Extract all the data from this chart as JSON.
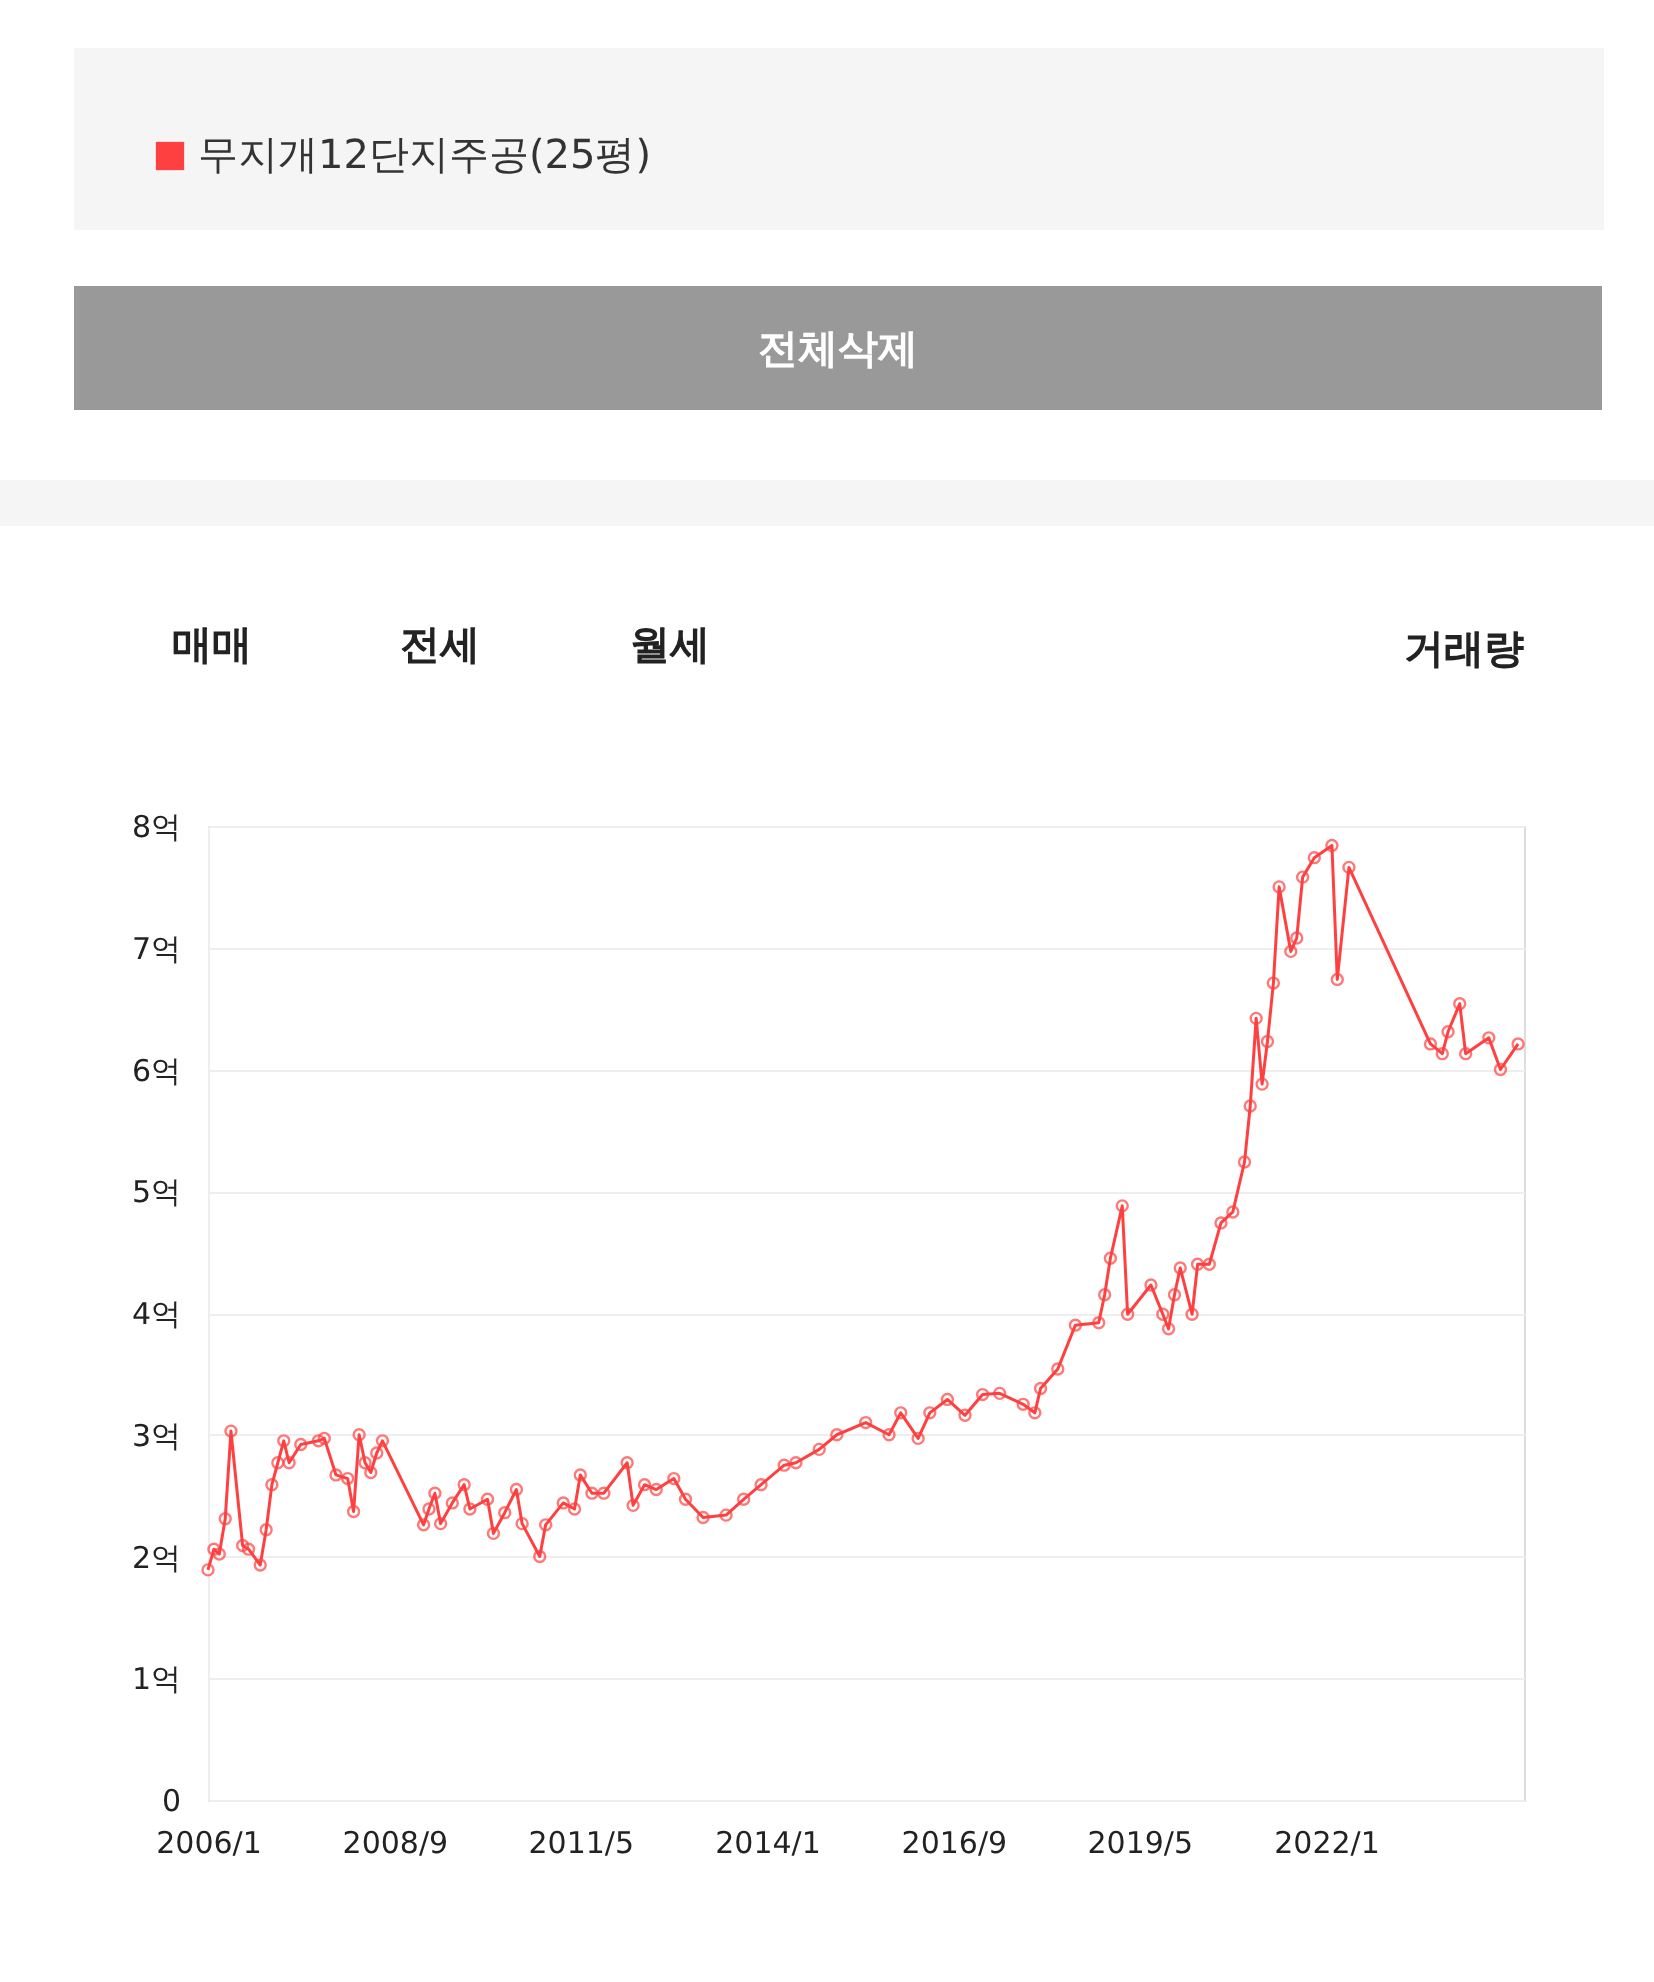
{
  "chart_data": {
    "type": "line",
    "marker": "circle",
    "line_style": "solid",
    "grid": "y",
    "legend": "top left",
    "annotations": [
      "전체삭제",
      "매매",
      "전세",
      "월세",
      "거래량"
    ],
    "xlim": [
      "2006-01",
      "2024-11"
    ],
    "ylim": [
      0,
      8
    ],
    "xticks": [
      {
        "value": "2006-01",
        "label": "2006/1"
      },
      {
        "value": "2008-09",
        "label": "2008/9"
      },
      {
        "value": "2011-05",
        "label": "2011/5"
      },
      {
        "value": "2014-01",
        "label": "2014/1"
      },
      {
        "value": "2016-09",
        "label": "2016/9"
      },
      {
        "value": "2019-05",
        "label": "2019/5"
      },
      {
        "value": "2022-01",
        "label": "2022/1"
      }
    ],
    "yticks": [
      0,
      {
        "value": 1,
        "label": "1억"
      },
      {
        "value": 2,
        "label": "2억"
      },
      {
        "value": 3,
        "label": "3억"
      },
      {
        "value": 4,
        "label": "4억"
      },
      {
        "value": 5,
        "label": "5억"
      },
      {
        "value": 6,
        "label": "6억"
      },
      {
        "value": 7,
        "label": "7억"
      },
      {
        "value": 8,
        "label": "8억"
      }
    ],
    "x": [
      "2006-01",
      "2006-02",
      "2006-03",
      "2006-04",
      "2006-05",
      "2006-07",
      "2006-08",
      "2006-10",
      "2006-11",
      "2006-12",
      "2007-01",
      "2007-02",
      "2007-03",
      "2007-05",
      "2007-08",
      "2007-09",
      "2007-11",
      "2008-01",
      "2008-02",
      "2008-03",
      "2008-04",
      "2008-05",
      "2008-06",
      "2008-07",
      "2009-02",
      "2009-03",
      "2009-04",
      "2009-05",
      "2009-07",
      "2009-09",
      "2009-10",
      "2010-01",
      "2010-02",
      "2010-04",
      "2010-06",
      "2010-07",
      "2010-10",
      "2010-11",
      "2011-02",
      "2011-04",
      "2011-05",
      "2011-07",
      "2011-09",
      "2012-01",
      "2012-02",
      "2012-04",
      "2012-06",
      "2012-09",
      "2012-11",
      "2013-02",
      "2013-06",
      "2013-09",
      "2013-12",
      "2014-04",
      "2014-06",
      "2014-10",
      "2015-01",
      "2015-06",
      "2015-10",
      "2015-12",
      "2016-03",
      "2016-05",
      "2016-08",
      "2016-11",
      "2017-02",
      "2017-05",
      "2017-09",
      "2017-11",
      "2017-12",
      "2018-03",
      "2018-06",
      "2018-10",
      "2018-11",
      "2018-12",
      "2019-02",
      "2019-03",
      "2019-07",
      "2019-09",
      "2019-10",
      "2019-11",
      "2019-12",
      "2020-02",
      "2020-03",
      "2020-05",
      "2020-07",
      "2020-09",
      "2020-11",
      "2020-12",
      "2021-01",
      "2021-02",
      "2021-03",
      "2021-04",
      "2021-05",
      "2021-07",
      "2021-08",
      "2021-09",
      "2021-11",
      "2022-02",
      "2022-03",
      "2022-05",
      "2023-07",
      "2023-09",
      "2023-10",
      "2023-12",
      "2024-01",
      "2024-05",
      "2024-07",
      "2024-10"
    ],
    "series": [
      {
        "name": "무지개12단지주공(25평)",
        "color": "#ff4040",
        "values": [
          1.89,
          2.06,
          2.02,
          2.31,
          3.03,
          2.09,
          2.06,
          1.93,
          2.22,
          2.59,
          2.77,
          2.95,
          2.77,
          2.92,
          2.95,
          2.97,
          2.67,
          2.64,
          2.37,
          3.0,
          2.77,
          2.69,
          2.85,
          2.95,
          2.26,
          2.39,
          2.52,
          2.27,
          2.44,
          2.59,
          2.39,
          2.47,
          2.19,
          2.36,
          2.55,
          2.27,
          2.0,
          2.26,
          2.44,
          2.39,
          2.67,
          2.52,
          2.52,
          2.77,
          2.42,
          2.59,
          2.55,
          2.64,
          2.47,
          2.32,
          2.34,
          2.47,
          2.59,
          2.75,
          2.77,
          2.88,
          3.0,
          3.1,
          3.0,
          3.18,
          2.97,
          3.18,
          3.29,
          3.16,
          3.33,
          3.34,
          3.25,
          3.18,
          3.38,
          3.54,
          3.9,
          3.92,
          4.15,
          4.45,
          4.88,
          3.99,
          4.23,
          3.99,
          3.87,
          4.15,
          4.37,
          3.99,
          4.4,
          4.4,
          4.74,
          4.83,
          5.24,
          5.7,
          6.42,
          5.88,
          6.23,
          6.71,
          7.5,
          6.97,
          7.08,
          7.58,
          7.74,
          7.84,
          6.74,
          7.66,
          6.21,
          6.13,
          6.31,
          6.54,
          6.13,
          6.26,
          6.0,
          6.21
        ]
      }
    ]
  }
}
